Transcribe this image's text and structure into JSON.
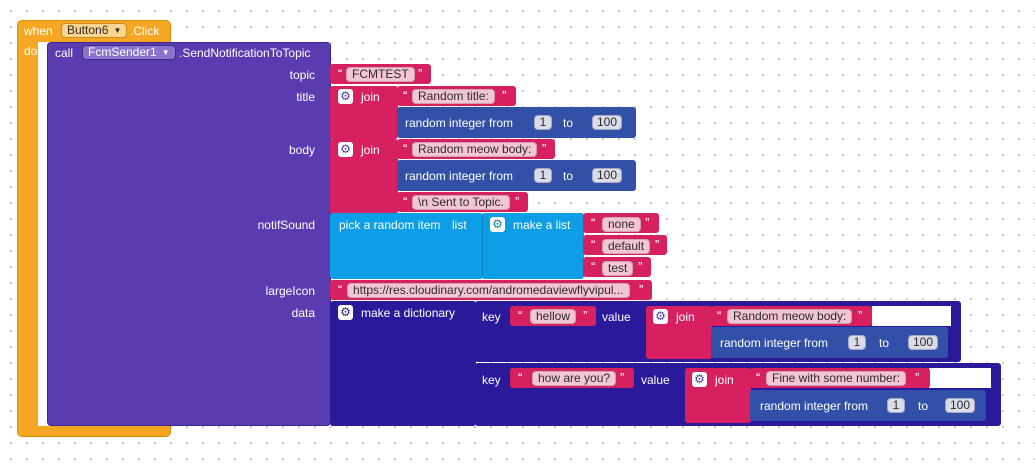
{
  "colors": {
    "event": "#f5a623",
    "component": "#5b3bb0",
    "text": "#d6205f",
    "math": "#3350a8",
    "list": "#0d9ee8",
    "dictionary": "#2a1a9a"
  },
  "event": {
    "when_label": "when",
    "component": "Button6",
    "event_name": ".Click",
    "do_label": "do"
  },
  "call": {
    "call_label": "call",
    "component": "FcmSender1",
    "method": ".SendNotificationToTopic"
  },
  "params": {
    "topic_label": "topic",
    "title_label": "title",
    "body_label": "body",
    "notif_sound_label": "notifSound",
    "large_icon_label": "largeIcon",
    "data_label": "data"
  },
  "topic_value": "FCMTEST",
  "title": {
    "join_label": "join",
    "text": "Random title: ",
    "random_label": "random integer from",
    "from": "1",
    "to_label": "to",
    "to": "100"
  },
  "body": {
    "join_label": "join",
    "text": "Random meow body: ",
    "random_label": "random integer from",
    "from": "1",
    "to_label": "to",
    "to": "100",
    "suffix": "\\n Sent to Topic."
  },
  "notif_sound": {
    "pick_label": "pick a random item",
    "list_label": "list",
    "make_list_label": "make a list",
    "items": [
      "none",
      "default",
      "test"
    ]
  },
  "large_icon_value": "https://res.cloudinary.com/andromedaviewflyvipul...",
  "data": {
    "make_dict_label": "make a dictionary",
    "pairs": [
      {
        "key_label": "key",
        "key": "hellow",
        "value_label": "value",
        "join_label": "join",
        "text": "Random meow body: ",
        "random_label": "random integer from",
        "from": "1",
        "to_label": "to",
        "to": "100"
      },
      {
        "key_label": "key",
        "key": "how are you?",
        "value_label": "value",
        "join_label": "join",
        "text": "Fine with some number: ",
        "random_label": "random integer from",
        "from": "1",
        "to_label": "to",
        "to": "100"
      }
    ]
  },
  "icons": {
    "gear": "gear-icon",
    "caret": "dropdown-caret-icon"
  }
}
